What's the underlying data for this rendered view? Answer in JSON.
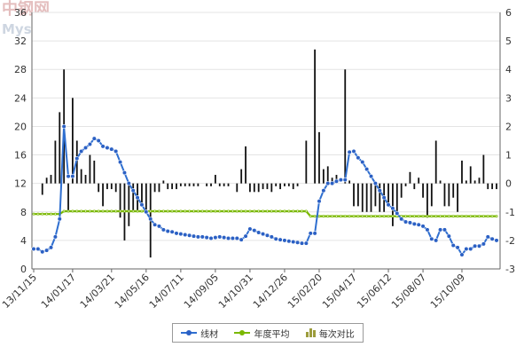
{
  "watermark": {
    "line1": "中钢网",
    "line2": "Mysteel.com"
  },
  "legend": {
    "line_label": "线材",
    "avg_label": "年度平均",
    "bar_label": "每次对比"
  },
  "colors": {
    "line": "#2f6fd0",
    "line_marker": "#2b60c4",
    "avg": "#7ab800",
    "bar": "#111111",
    "grid": "#e4e4e4",
    "axis": "#666666"
  },
  "chart_data": {
    "type": "line",
    "title": "",
    "xlabel": "",
    "ylabel": "",
    "ylim": [
      0,
      36
    ],
    "y2lim": [
      -3,
      6
    ],
    "yticks": [
      0,
      4,
      8,
      12,
      16,
      20,
      24,
      28,
      32,
      36
    ],
    "y2ticks": [
      -3,
      -2,
      -1,
      0,
      1,
      2,
      3,
      4,
      5,
      6
    ],
    "grid": true,
    "legend_position": "bottom",
    "x_tick_labels": [
      "13/11/15",
      "14/01/17",
      "14/03/21",
      "14/05/16",
      "14/07/11",
      "14/09/05",
      "14/10/31",
      "14/12/26",
      "15/02/20",
      "15/04/17",
      "15/06/12",
      "15/08/07",
      "15/10/09"
    ],
    "x_tick_positions": [
      0,
      9,
      18,
      26,
      34,
      42,
      50,
      58,
      66,
      74,
      82,
      90,
      99
    ],
    "x_count": 108,
    "series": [
      {
        "name": "线材",
        "axis": "left",
        "values": [
          2.8,
          2.8,
          2.4,
          2.6,
          3.0,
          4.5,
          7.0,
          20.0,
          13.0,
          13.0,
          15.5,
          16.5,
          17.0,
          17.5,
          18.3,
          18.0,
          17.2,
          17.0,
          16.8,
          16.5,
          15.0,
          13.5,
          12.0,
          11.0,
          10.0,
          9.0,
          8.0,
          7.0,
          6.2,
          6.0,
          5.5,
          5.3,
          5.2,
          5.0,
          4.9,
          4.8,
          4.7,
          4.6,
          4.5,
          4.5,
          4.4,
          4.3,
          4.4,
          4.5,
          4.4,
          4.3,
          4.3,
          4.3,
          4.1,
          4.6,
          5.6,
          5.4,
          5.1,
          4.9,
          4.7,
          4.5,
          4.2,
          4.1,
          4.0,
          3.9,
          3.8,
          3.7,
          3.6,
          3.6,
          5.0,
          5.0,
          9.5,
          11.0,
          12.0,
          12.0,
          12.3,
          12.5,
          12.5,
          16.4,
          16.5,
          15.6,
          15.0,
          14.0,
          13.0,
          12.0,
          11.0,
          10.0,
          9.0,
          8.5,
          7.8,
          7.0,
          6.6,
          6.5,
          6.3,
          6.2,
          6.0,
          5.5,
          4.2,
          4.0,
          5.5,
          5.5,
          4.6,
          3.3,
          3.0,
          2.0,
          2.8,
          2.8,
          3.2,
          3.2,
          3.5,
          4.5,
          4.2,
          4.0
        ]
      },
      {
        "name": "年度平均",
        "axis": "left",
        "values": [
          7.7,
          7.7,
          7.7,
          7.7,
          7.7,
          7.7,
          7.7,
          8.1,
          8.1,
          8.1,
          8.1,
          8.1,
          8.1,
          8.1,
          8.1,
          8.1,
          8.1,
          8.1,
          8.1,
          8.1,
          8.1,
          8.1,
          8.1,
          8.1,
          8.1,
          8.1,
          8.1,
          8.1,
          8.1,
          8.1,
          8.1,
          8.1,
          8.1,
          8.1,
          8.1,
          8.1,
          8.1,
          8.1,
          8.1,
          8.1,
          8.1,
          8.1,
          8.1,
          8.1,
          8.1,
          8.1,
          8.1,
          8.1,
          8.1,
          8.1,
          8.1,
          8.1,
          8.1,
          8.1,
          8.1,
          8.1,
          8.1,
          8.1,
          8.1,
          8.1,
          8.1,
          8.1,
          8.1,
          8.1,
          7.4,
          7.4,
          7.4,
          7.4,
          7.4,
          7.4,
          7.4,
          7.4,
          7.4,
          7.4,
          7.4,
          7.4,
          7.4,
          7.4,
          7.4,
          7.4,
          7.4,
          7.4,
          7.4,
          7.4,
          7.4,
          7.4,
          7.4,
          7.4,
          7.4,
          7.4,
          7.4,
          7.4,
          7.4,
          7.4,
          7.4,
          7.4,
          7.4,
          7.4,
          7.4,
          7.4,
          7.4,
          7.4,
          7.4,
          7.4,
          7.4,
          7.4,
          7.4,
          7.4
        ]
      },
      {
        "name": "每次对比",
        "axis": "right",
        "type": "bar",
        "values": [
          0,
          0,
          -0.4,
          0.2,
          0.3,
          1.5,
          2.5,
          4.0,
          -1.0,
          3.0,
          1.5,
          0.5,
          0.3,
          1.0,
          0.8,
          -0.3,
          -0.8,
          -0.2,
          -0.2,
          -0.3,
          -1.2,
          -2.0,
          -1.5,
          -1.0,
          -1.0,
          -0.8,
          -1.0,
          -2.6,
          -0.3,
          -0.3,
          0.1,
          -0.2,
          -0.2,
          -0.2,
          -0.1,
          -0.1,
          -0.1,
          -0.1,
          -0.1,
          0,
          -0.1,
          -0.1,
          0.3,
          -0.1,
          -0.1,
          -0.1,
          0,
          -0.3,
          0.5,
          1.3,
          -0.3,
          -0.3,
          -0.3,
          -0.2,
          -0.2,
          -0.3,
          -0.1,
          -0.2,
          -0.1,
          -0.1,
          -0.2,
          -0.1,
          0,
          1.5,
          0,
          4.7,
          1.8,
          0.5,
          0.6,
          0.2,
          0.3,
          0,
          4.0,
          0.1,
          -0.8,
          -0.8,
          -1.0,
          -1.0,
          -1.0,
          -0.8,
          -1.0,
          -1.0,
          -0.8,
          -1.5,
          -1.0,
          -0.5,
          -0.1,
          0.4,
          -0.2,
          0.2,
          -0.5,
          -1.2,
          -0.8,
          1.5,
          0.1,
          -0.8,
          -0.8,
          -0.5,
          -1.0,
          0.8,
          0.1,
          0.6,
          0.1,
          0.2,
          1.0,
          -0.2,
          -0.2,
          -0.2
        ]
      }
    ]
  }
}
